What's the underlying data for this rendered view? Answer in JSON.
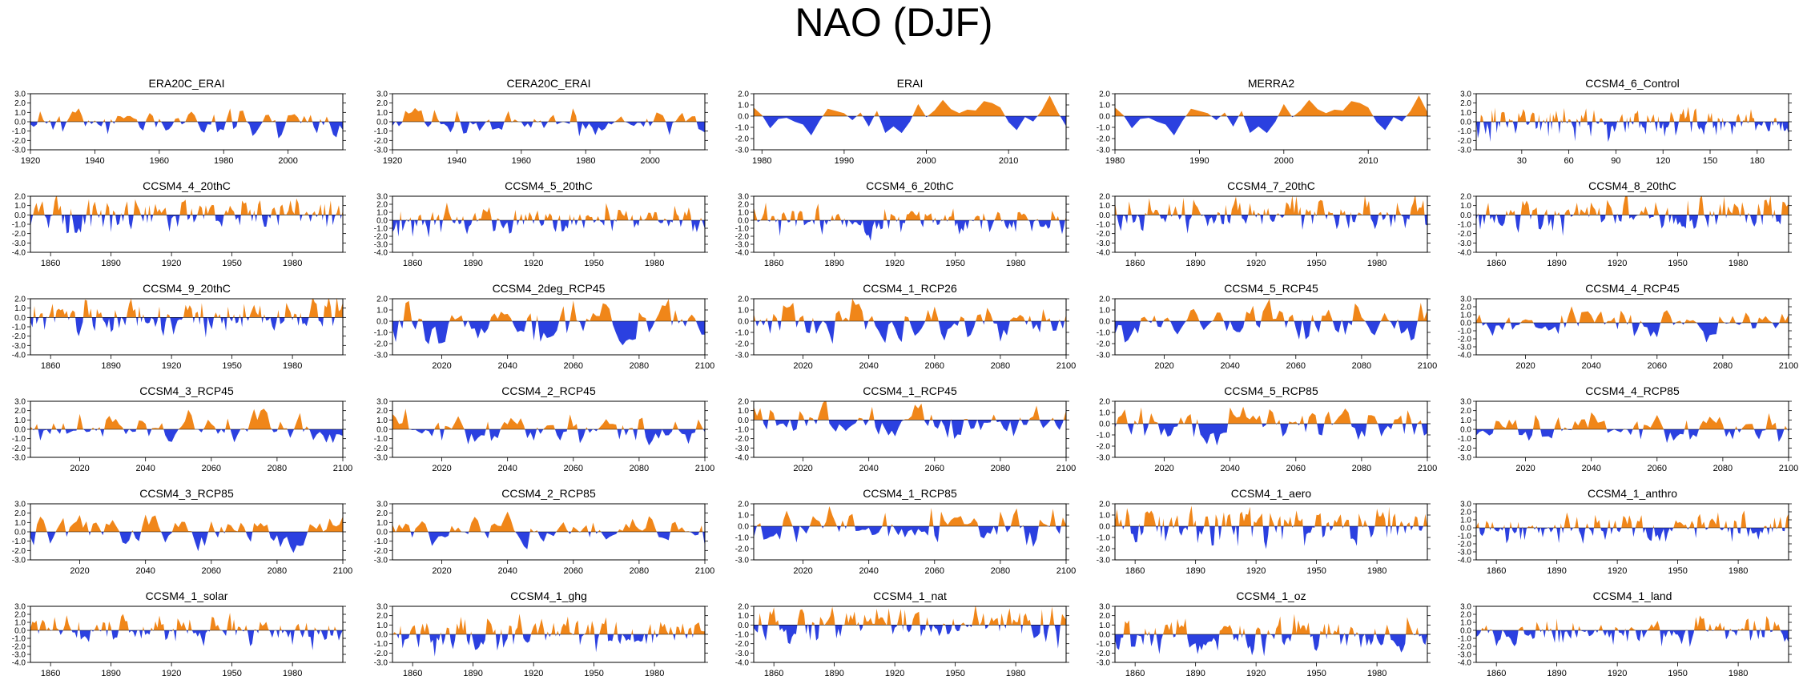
{
  "figure_title": "NAO (DJF)",
  "colors": {
    "positive": "#f08619",
    "negative": "#2b40e0",
    "axis": "#000000"
  },
  "chart_data": [
    {
      "type": "area",
      "title": "ERA20C_ERAI",
      "x_start": 1920,
      "x_end": 2017,
      "xticks": [
        1920,
        1940,
        1960,
        1980,
        2000
      ],
      "ylim": [
        -3,
        3
      ],
      "ytick_labels": [
        "3.0",
        "2.0",
        "1.0",
        "0.0",
        "-1.0",
        "-2.0",
        "-3.0"
      ],
      "seed": 11,
      "amp": 0.8,
      "smooth": 0.45
    },
    {
      "type": "area",
      "title": "CERA20C_ERAI",
      "x_start": 1920,
      "x_end": 2017,
      "xticks": [
        1920,
        1940,
        1960,
        1980,
        2000
      ],
      "ylim": [
        -3,
        3
      ],
      "ytick_labels": [
        "3.0",
        "2.0",
        "1.0",
        "0.0",
        "-1.0",
        "-2.0",
        "-3.0"
      ],
      "seed": 12,
      "amp": 0.8,
      "smooth": 0.45
    },
    {
      "type": "area",
      "title": "ERAI",
      "x_start": 1979,
      "x_end": 2017,
      "xticks": [
        1980,
        1990,
        2000,
        2010
      ],
      "ylim": [
        -3,
        2
      ],
      "ytick_labels": [
        "2.0",
        "1.0",
        "0.0",
        "-1.0",
        "-2.0",
        "-3.0"
      ],
      "seed": 13,
      "amp": 1.0,
      "smooth": 0.6
    },
    {
      "type": "area",
      "title": "MERRA2",
      "x_start": 1980,
      "x_end": 2017,
      "xticks": [
        1980,
        1990,
        2000,
        2010
      ],
      "ylim": [
        -3,
        2
      ],
      "ytick_labels": [
        "2.0",
        "1.0",
        "0.0",
        "-1.0",
        "-2.0",
        "-3.0"
      ],
      "seed": 13,
      "amp": 1.0,
      "smooth": 0.6
    },
    {
      "type": "area",
      "title": "CCSM4_6_Control",
      "x_start": 1,
      "x_end": 200,
      "xticks": [
        30,
        60,
        90,
        120,
        150,
        180
      ],
      "ylim": [
        -3,
        3
      ],
      "ytick_labels": [
        "3.0",
        "2.0",
        "1.0",
        "0.0",
        "-1.0",
        "-2.0",
        "-3.0"
      ],
      "seed": 15,
      "amp": 0.8,
      "smooth": 0.2
    },
    {
      "type": "area",
      "title": "CCSM4_4_20thC",
      "x_start": 1850,
      "x_end": 2005,
      "xticks": [
        1860,
        1890,
        1920,
        1950,
        1980
      ],
      "ylim": [
        -4,
        2
      ],
      "ytick_labels": [
        "2.0",
        "1.0",
        "0.0",
        "-1.0",
        "-2.0",
        "-3.0",
        "-4.0"
      ],
      "seed": 21,
      "amp": 0.9,
      "smooth": 0.3
    },
    {
      "type": "area",
      "title": "CCSM4_5_20thC",
      "x_start": 1850,
      "x_end": 2005,
      "xticks": [
        1860,
        1890,
        1920,
        1950,
        1980
      ],
      "ylim": [
        -4,
        3
      ],
      "ytick_labels": [
        "3.0",
        "2.0",
        "1.0",
        "0.0",
        "-1.0",
        "-2.0",
        "-3.0",
        "-4.0"
      ],
      "seed": 22,
      "amp": 0.9,
      "smooth": 0.3
    },
    {
      "type": "area",
      "title": "CCSM4_6_20thC",
      "x_start": 1850,
      "x_end": 2005,
      "xticks": [
        1860,
        1890,
        1920,
        1950,
        1980
      ],
      "ylim": [
        -4,
        3
      ],
      "ytick_labels": [
        "3.0",
        "2.0",
        "1.0",
        "0.0",
        "-1.0",
        "-2.0",
        "-3.0",
        "-4.0"
      ],
      "seed": 23,
      "amp": 0.9,
      "smooth": 0.3
    },
    {
      "type": "area",
      "title": "CCSM4_7_20thC",
      "x_start": 1850,
      "x_end": 2005,
      "xticks": [
        1860,
        1890,
        1920,
        1950,
        1980
      ],
      "ylim": [
        -4,
        2
      ],
      "ytick_labels": [
        "2.0",
        "1.0",
        "0.0",
        "-1.0",
        "-2.0",
        "-3.0",
        "-4.0"
      ],
      "seed": 24,
      "amp": 0.9,
      "smooth": 0.3
    },
    {
      "type": "area",
      "title": "CCSM4_8_20thC",
      "x_start": 1850,
      "x_end": 2005,
      "xticks": [
        1860,
        1890,
        1920,
        1950,
        1980
      ],
      "ylim": [
        -4,
        2
      ],
      "ytick_labels": [
        "2.0",
        "1.0",
        "0.0",
        "-1.0",
        "-2.0",
        "-3.0",
        "-4.0"
      ],
      "seed": 25,
      "amp": 0.9,
      "smooth": 0.3
    },
    {
      "type": "area",
      "title": "CCSM4_9_20thC",
      "x_start": 1850,
      "x_end": 2005,
      "xticks": [
        1860,
        1890,
        1920,
        1950,
        1980
      ],
      "ylim": [
        -4,
        2
      ],
      "ytick_labels": [
        "2.0",
        "1.0",
        "0.0",
        "-1.0",
        "-2.0",
        "-3.0",
        "-4.0"
      ],
      "seed": 31,
      "amp": 0.9,
      "smooth": 0.3
    },
    {
      "type": "area",
      "title": "CCSM4_2deg_RCP45",
      "x_start": 2005,
      "x_end": 2100,
      "xticks": [
        2020,
        2040,
        2060,
        2080,
        2100
      ],
      "ylim": [
        -3,
        2
      ],
      "ytick_labels": [
        "2.0",
        "1.0",
        "0.0",
        "-1.0",
        "-2.0",
        "-3.0"
      ],
      "seed": 32,
      "amp": 0.9,
      "smooth": 0.4
    },
    {
      "type": "area",
      "title": "CCSM4_1_RCP26",
      "x_start": 2005,
      "x_end": 2100,
      "xticks": [
        2020,
        2040,
        2060,
        2080,
        2100
      ],
      "ylim": [
        -3,
        2
      ],
      "ytick_labels": [
        "2.0",
        "1.0",
        "0.0",
        "-1.0",
        "-2.0",
        "-3.0"
      ],
      "seed": 33,
      "amp": 0.9,
      "smooth": 0.4
    },
    {
      "type": "area",
      "title": "CCSM4_5_RCP45",
      "x_start": 2005,
      "x_end": 2100,
      "xticks": [
        2020,
        2040,
        2060,
        2080,
        2100
      ],
      "ylim": [
        -3,
        2
      ],
      "ytick_labels": [
        "2.0",
        "1.0",
        "0.0",
        "-1.0",
        "-2.0",
        "-3.0"
      ],
      "seed": 34,
      "amp": 0.9,
      "smooth": 0.4
    },
    {
      "type": "area",
      "title": "CCSM4_4_RCP45",
      "x_start": 2005,
      "x_end": 2100,
      "xticks": [
        2020,
        2040,
        2060,
        2080,
        2100
      ],
      "ylim": [
        -4,
        3
      ],
      "ytick_labels": [
        "3.0",
        "2.0",
        "1.0",
        "0.0",
        "-1.0",
        "-2.0",
        "-3.0",
        "-4.0"
      ],
      "seed": 35,
      "amp": 0.9,
      "smooth": 0.4
    },
    {
      "type": "area",
      "title": "CCSM4_3_RCP45",
      "x_start": 2005,
      "x_end": 2100,
      "xticks": [
        2020,
        2040,
        2060,
        2080,
        2100
      ],
      "ylim": [
        -3,
        3
      ],
      "ytick_labels": [
        "3.0",
        "2.0",
        "1.0",
        "0.0",
        "-1.0",
        "-2.0",
        "-3.0"
      ],
      "seed": 41,
      "amp": 0.9,
      "smooth": 0.4
    },
    {
      "type": "area",
      "title": "CCSM4_2_RCP45",
      "x_start": 2005,
      "x_end": 2100,
      "xticks": [
        2020,
        2040,
        2060,
        2080,
        2100
      ],
      "ylim": [
        -3,
        3
      ],
      "ytick_labels": [
        "3.0",
        "2.0",
        "1.0",
        "0.0",
        "-1.0",
        "-2.0",
        "-3.0"
      ],
      "seed": 42,
      "amp": 0.9,
      "smooth": 0.4
    },
    {
      "type": "area",
      "title": "CCSM4_1_RCP45",
      "x_start": 2005,
      "x_end": 2100,
      "xticks": [
        2020,
        2040,
        2060,
        2080,
        2100
      ],
      "ylim": [
        -4,
        2
      ],
      "ytick_labels": [
        "2.0",
        "1.0",
        "0.0",
        "-1.0",
        "-2.0",
        "-3.0",
        "-4.0"
      ],
      "seed": 43,
      "amp": 0.9,
      "smooth": 0.4
    },
    {
      "type": "area",
      "title": "CCSM4_5_RCP85",
      "x_start": 2005,
      "x_end": 2100,
      "xticks": [
        2020,
        2040,
        2060,
        2080,
        2100
      ],
      "ylim": [
        -3,
        2
      ],
      "ytick_labels": [
        "2.0",
        "1.0",
        "0.0",
        "-1.0",
        "-2.0",
        "-3.0"
      ],
      "seed": 44,
      "amp": 0.9,
      "smooth": 0.4
    },
    {
      "type": "area",
      "title": "CCSM4_4_RCP85",
      "x_start": 2005,
      "x_end": 2100,
      "xticks": [
        2020,
        2040,
        2060,
        2080,
        2100
      ],
      "ylim": [
        -3,
        3
      ],
      "ytick_labels": [
        "3.0",
        "2.0",
        "1.0",
        "0.0",
        "-1.0",
        "-2.0",
        "-3.0"
      ],
      "seed": 45,
      "amp": 0.9,
      "smooth": 0.4
    },
    {
      "type": "area",
      "title": "CCSM4_3_RCP85",
      "x_start": 2005,
      "x_end": 2100,
      "xticks": [
        2020,
        2040,
        2060,
        2080,
        2100
      ],
      "ylim": [
        -3,
        3
      ],
      "ytick_labels": [
        "3.0",
        "2.0",
        "1.0",
        "0.0",
        "-1.0",
        "-2.0",
        "-3.0"
      ],
      "seed": 51,
      "amp": 0.9,
      "smooth": 0.4
    },
    {
      "type": "area",
      "title": "CCSM4_2_RCP85",
      "x_start": 2005,
      "x_end": 2100,
      "xticks": [
        2020,
        2040,
        2060,
        2080,
        2100
      ],
      "ylim": [
        -3,
        3
      ],
      "ytick_labels": [
        "3.0",
        "2.0",
        "1.0",
        "0.0",
        "-1.0",
        "-2.0",
        "-3.0"
      ],
      "seed": 52,
      "amp": 0.9,
      "smooth": 0.4
    },
    {
      "type": "area",
      "title": "CCSM4_1_RCP85",
      "x_start": 2005,
      "x_end": 2100,
      "xticks": [
        2020,
        2040,
        2060,
        2080,
        2100
      ],
      "ylim": [
        -3,
        2
      ],
      "ytick_labels": [
        "2.0",
        "1.0",
        "0.0",
        "-1.0",
        "-2.0",
        "-3.0"
      ],
      "seed": 53,
      "amp": 0.9,
      "smooth": 0.4
    },
    {
      "type": "area",
      "title": "CCSM4_1_aero",
      "x_start": 1850,
      "x_end": 2005,
      "xticks": [
        1860,
        1890,
        1920,
        1950,
        1980
      ],
      "ylim": [
        -3,
        2
      ],
      "ytick_labels": [
        "2.0",
        "1.0",
        "0.0",
        "-1.0",
        "-2.0",
        "-3.0"
      ],
      "seed": 54,
      "amp": 0.9,
      "smooth": 0.3
    },
    {
      "type": "area",
      "title": "CCSM4_1_anthro",
      "x_start": 1850,
      "x_end": 2005,
      "xticks": [
        1860,
        1890,
        1920,
        1950,
        1980
      ],
      "ylim": [
        -4,
        3
      ],
      "ytick_labels": [
        "3.0",
        "2.0",
        "1.0",
        "0.0",
        "-1.0",
        "-2.0",
        "-3.0",
        "-4.0"
      ],
      "seed": 55,
      "amp": 0.9,
      "smooth": 0.3
    },
    {
      "type": "area",
      "title": "CCSM4_1_solar",
      "x_start": 1850,
      "x_end": 2005,
      "xticks": [
        1860,
        1890,
        1920,
        1950,
        1980
      ],
      "ylim": [
        -4,
        3
      ],
      "ytick_labels": [
        "3.0",
        "2.0",
        "1.0",
        "0.0",
        "-1.0",
        "-2.0",
        "-3.0",
        "-4.0"
      ],
      "seed": 61,
      "amp": 0.9,
      "smooth": 0.3
    },
    {
      "type": "area",
      "title": "CCSM4_1_ghg",
      "x_start": 1850,
      "x_end": 2005,
      "xticks": [
        1860,
        1890,
        1920,
        1950,
        1980
      ],
      "ylim": [
        -3,
        3
      ],
      "ytick_labels": [
        "3.0",
        "2.0",
        "1.0",
        "0.0",
        "-1.0",
        "-2.0",
        "-3.0"
      ],
      "seed": 62,
      "amp": 0.9,
      "smooth": 0.3
    },
    {
      "type": "area",
      "title": "CCSM4_1_nat",
      "x_start": 1850,
      "x_end": 2005,
      "xticks": [
        1860,
        1890,
        1920,
        1950,
        1980
      ],
      "ylim": [
        -4,
        2
      ],
      "ytick_labels": [
        "2.0",
        "1.0",
        "0.0",
        "-1.0",
        "-2.0",
        "-3.0",
        "-4.0"
      ],
      "seed": 63,
      "amp": 0.9,
      "smooth": 0.3
    },
    {
      "type": "area",
      "title": "CCSM4_1_oz",
      "x_start": 1850,
      "x_end": 2005,
      "xticks": [
        1860,
        1890,
        1920,
        1950,
        1980
      ],
      "ylim": [
        -3,
        3
      ],
      "ytick_labels": [
        "3.0",
        "2.0",
        "1.0",
        "0.0",
        "-1.0",
        "-2.0",
        "-3.0"
      ],
      "seed": 64,
      "amp": 0.9,
      "smooth": 0.3
    },
    {
      "type": "area",
      "title": "CCSM4_1_land",
      "x_start": 1850,
      "x_end": 2005,
      "xticks": [
        1860,
        1890,
        1920,
        1950,
        1980
      ],
      "ylim": [
        -4,
        3
      ],
      "ytick_labels": [
        "3.0",
        "2.0",
        "1.0",
        "0.0",
        "-1.0",
        "-2.0",
        "-3.0",
        "-4.0"
      ],
      "seed": 65,
      "amp": 0.9,
      "smooth": 0.3
    }
  ]
}
